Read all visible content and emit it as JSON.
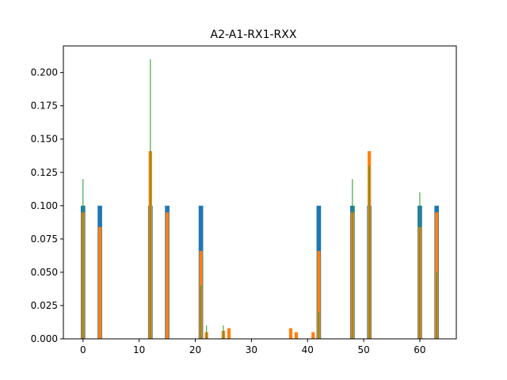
{
  "chart_data": {
    "type": "bar",
    "title": "A2-A1-RX1-RXX",
    "xlabel": "",
    "ylabel": "",
    "xlim": [
      -3.5,
      66.5
    ],
    "ylim": [
      0,
      0.22
    ],
    "xticks": [
      0,
      10,
      20,
      30,
      40,
      50,
      60
    ],
    "yticks": [
      0.0,
      0.025,
      0.05,
      0.075,
      0.1,
      0.125,
      0.15,
      0.175,
      0.2
    ],
    "ytick_labels": [
      "0.000",
      "0.025",
      "0.050",
      "0.075",
      "0.100",
      "0.125",
      "0.150",
      "0.175",
      "0.200"
    ],
    "grid": false,
    "legend": "none",
    "series": [
      {
        "color": "#1f77b4",
        "bar_width": 0.8,
        "x": [
          0,
          3,
          12,
          15,
          21,
          42,
          48,
          51,
          60,
          63
        ],
        "values": [
          0.1,
          0.1,
          0.1,
          0.1,
          0.1,
          0.1,
          0.1,
          0.1,
          0.1,
          0.1
        ]
      },
      {
        "color": "#ff7f0e",
        "bar_width": 0.6,
        "x": [
          0,
          3,
          12,
          15,
          21,
          22,
          25,
          26,
          37,
          38,
          41,
          42,
          48,
          51,
          60,
          63
        ],
        "values": [
          0.095,
          0.084,
          0.141,
          0.095,
          0.066,
          0.005,
          0.006,
          0.008,
          0.008,
          0.005,
          0.005,
          0.066,
          0.095,
          0.141,
          0.084,
          0.095
        ]
      },
      {
        "color": "#2ca02c",
        "bar_width": 0.15,
        "x": [
          0,
          12,
          21,
          22,
          25,
          42,
          48,
          51,
          60,
          63
        ],
        "values": [
          0.12,
          0.21,
          0.04,
          0.01,
          0.01,
          0.02,
          0.12,
          0.13,
          0.11,
          0.05
        ]
      }
    ]
  }
}
